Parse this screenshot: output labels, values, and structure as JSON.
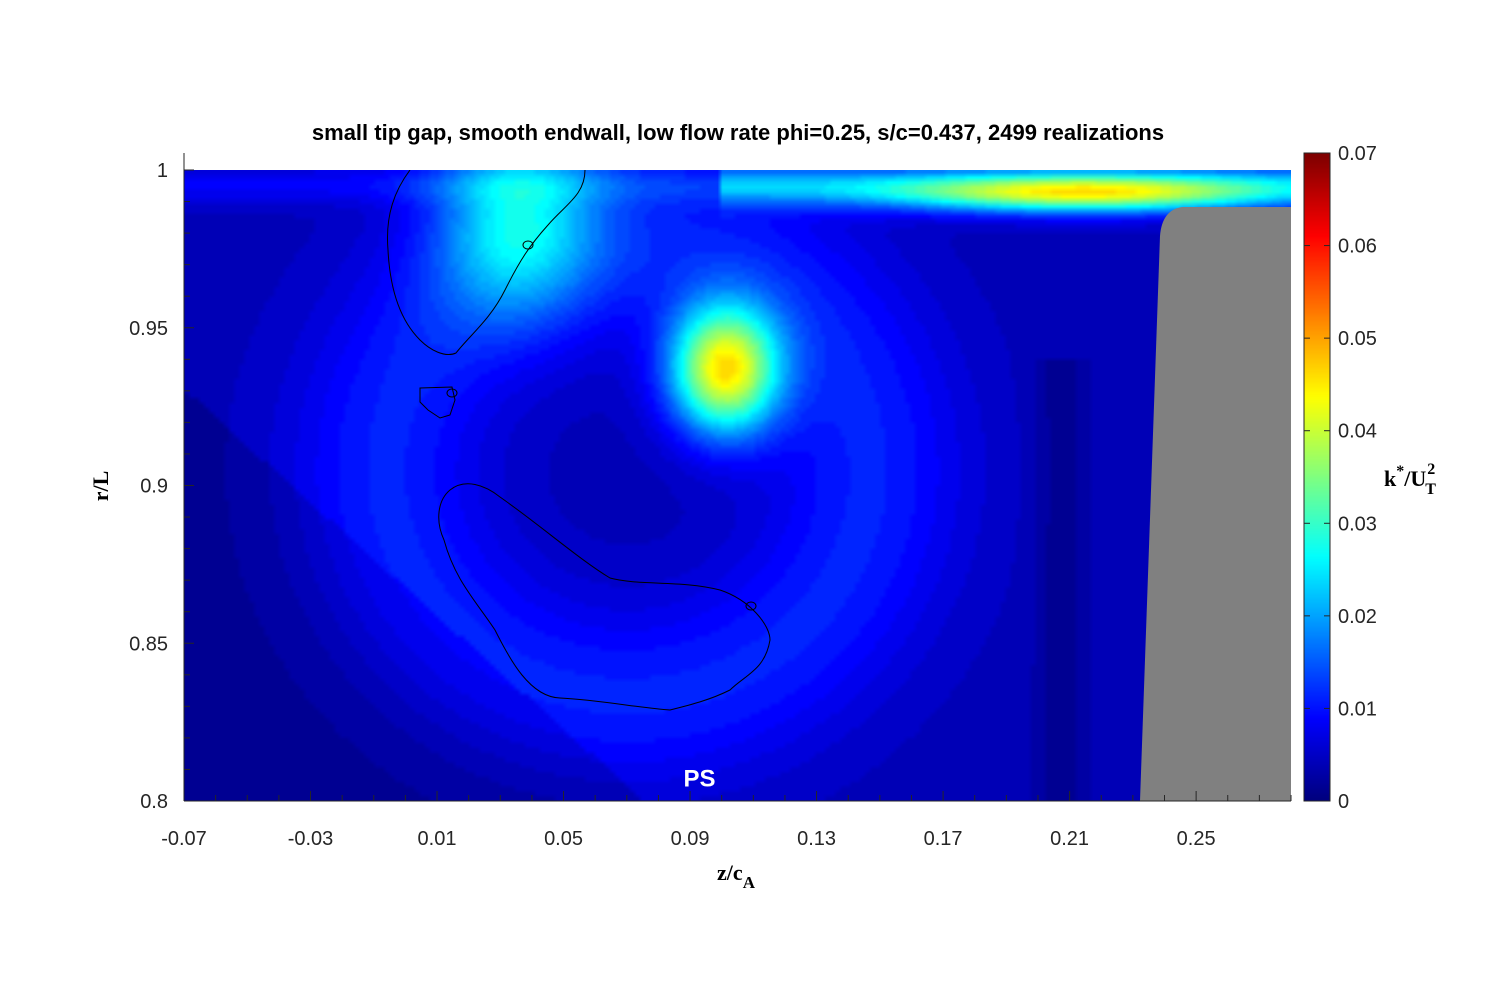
{
  "chart_data": {
    "type": "heatmap",
    "title": "small tip gap, smooth endwall, low flow rate phi=0.25, s/c=0.437,  2499 realizations",
    "xlabel": {
      "main": "z/c",
      "sub": "A"
    },
    "ylabel": "r/L",
    "xlim": [
      -0.07,
      0.28
    ],
    "ylim": [
      0.8,
      1.0
    ],
    "x_ticks": [
      "-0.07",
      "-0.03",
      "0.01",
      "0.05",
      "0.09",
      "0.13",
      "0.17",
      "0.21",
      "0.25"
    ],
    "x_tick_values": [
      -0.07,
      -0.03,
      0.01,
      0.05,
      0.09,
      0.13,
      0.17,
      0.21,
      0.25
    ],
    "y_ticks": [
      "0.8",
      "0.85",
      "0.9",
      "0.95",
      "1"
    ],
    "y_tick_values": [
      0.8,
      0.85,
      0.9,
      0.95,
      1.0
    ],
    "colorbar": {
      "label": {
        "base": "k",
        "sup1": "*",
        "mid": "/U",
        "sup2": "2",
        "sub": "T"
      },
      "range": [
        0,
        0.07
      ],
      "ticks": [
        "0",
        "0.01",
        "0.02",
        "0.03",
        "0.04",
        "0.05",
        "0.06",
        "0.07"
      ],
      "tick_values": [
        0,
        0.01,
        0.02,
        0.03,
        0.04,
        0.05,
        0.06,
        0.07
      ],
      "colormap": "jet"
    },
    "features": [
      {
        "kind": "peak",
        "z": 0.101,
        "r": 0.937,
        "value": 0.043
      },
      {
        "kind": "tip-leakage-jet",
        "z": 0.21,
        "r": 0.992,
        "value": 0.033
      },
      {
        "kind": "vortex-band",
        "z": 0.03,
        "r": 0.97,
        "value": 0.02
      }
    ],
    "masked_regions": [
      "top-wall",
      "blade"
    ],
    "annotations": [
      {
        "text": "PS",
        "z": 0.093,
        "r": 0.804
      }
    ],
    "contour_lines": true
  }
}
